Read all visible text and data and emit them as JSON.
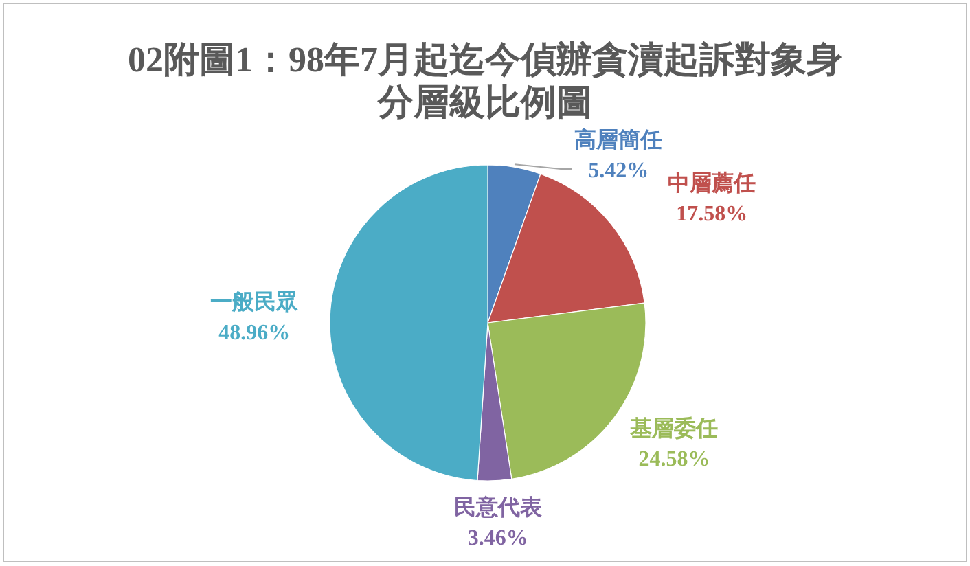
{
  "chart_data": {
    "type": "pie",
    "title": "02附圖1：98年7月起迄今偵辦貪瀆起訴對象身分層級比例圖",
    "categories": [
      "高層簡任",
      "中層薦任",
      "基層委任",
      "民意代表",
      "一般民眾"
    ],
    "values": [
      5.42,
      17.58,
      24.58,
      3.46,
      48.96
    ],
    "colors": [
      "#4f81bd",
      "#c0504d",
      "#9bbb59",
      "#8064a2",
      "#4bacc6"
    ],
    "value_labels": [
      "5.42%",
      "17.58%",
      "24.58%",
      "3.46%",
      "48.96%"
    ]
  }
}
